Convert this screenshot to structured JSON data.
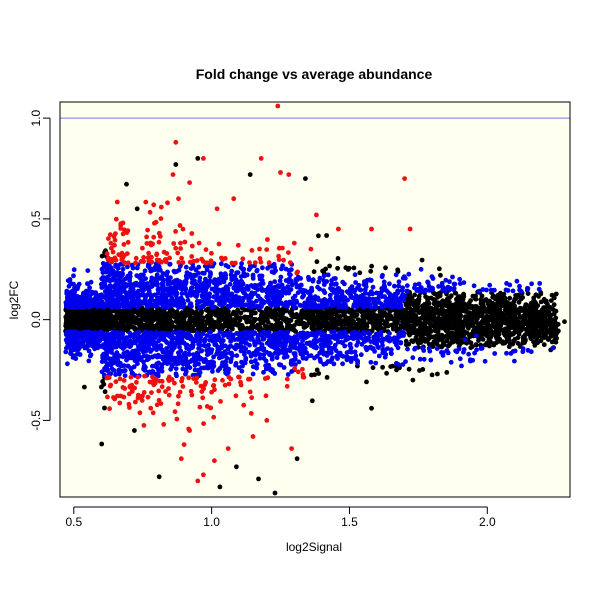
{
  "chart_data": {
    "type": "scatter",
    "title": "Fold change vs average abundance",
    "xlabel": "log2Signal",
    "ylabel": "log2FC",
    "xlim": [
      0.45,
      2.3
    ],
    "ylim": [
      -0.88,
      1.08
    ],
    "xticks": [
      0.5,
      1.0,
      1.5,
      2.0
    ],
    "xtick_labels": [
      "0.5",
      "1.0",
      "1.5",
      "2.0"
    ],
    "yticks": [
      -0.5,
      0.0,
      0.5,
      1.0
    ],
    "ytick_labels": [
      "-0.5",
      "0.0",
      "0.5",
      "1.0"
    ],
    "grid": false,
    "background": "#fffff0",
    "hline": {
      "y": 1.0,
      "color": "#7777ee"
    },
    "colors": {
      "black": "#000000",
      "blue": "#0000ee",
      "red": "#ee1111"
    },
    "highlights": {
      "red": [
        [
          1.24,
          1.06
        ],
        [
          0.87,
          0.88
        ],
        [
          1.18,
          0.8
        ],
        [
          1.7,
          0.7
        ],
        [
          1.25,
          0.73
        ],
        [
          1.28,
          0.72
        ],
        [
          1.38,
          0.52
        ],
        [
          1.46,
          0.45
        ],
        [
          1.72,
          0.45
        ],
        [
          1.58,
          0.45
        ],
        [
          0.97,
          0.8
        ],
        [
          0.86,
          0.72
        ],
        [
          0.92,
          0.68
        ],
        [
          0.88,
          0.6
        ],
        [
          1.08,
          0.6
        ],
        [
          0.79,
          0.57
        ],
        [
          0.84,
          0.58
        ],
        [
          1.02,
          0.55
        ],
        [
          1.3,
          0.38
        ],
        [
          1.36,
          0.35
        ],
        [
          0.97,
          -0.77
        ],
        [
          0.95,
          -0.8
        ],
        [
          0.89,
          -0.69
        ],
        [
          1.06,
          -0.64
        ],
        [
          1.29,
          -0.64
        ],
        [
          1.15,
          -0.58
        ],
        [
          1.01,
          -0.7
        ],
        [
          0.92,
          -0.55
        ],
        [
          1.2,
          -0.5
        ],
        [
          0.9,
          -0.62
        ]
      ],
      "black": [
        [
          1.23,
          -0.86
        ],
        [
          1.31,
          -0.69
        ],
        [
          1.58,
          -0.44
        ],
        [
          1.09,
          -0.73
        ],
        [
          0.95,
          0.8
        ],
        [
          0.87,
          0.77
        ],
        [
          1.34,
          0.7
        ],
        [
          2.23,
          -0.15
        ],
        [
          2.25,
          -0.05
        ],
        [
          2.18,
          -0.1
        ],
        [
          2.2,
          0.05
        ],
        [
          0.72,
          -0.55
        ],
        [
          1.14,
          0.72
        ],
        [
          1.17,
          -0.79
        ],
        [
          1.83,
          0.22
        ],
        [
          2.28,
          -0.01
        ],
        [
          0.81,
          -0.78
        ],
        [
          1.03,
          -0.83
        ],
        [
          0.73,
          0.55
        ],
        [
          1.73,
          -0.3
        ]
      ],
      "blue": [
        [
          1.76,
          0.25
        ],
        [
          1.9,
          0.2
        ],
        [
          2.07,
          0.18
        ],
        [
          2.19,
          0.18
        ],
        [
          1.62,
          0.22
        ],
        [
          1.56,
          0.18
        ],
        [
          1.92,
          -0.1
        ],
        [
          1.96,
          -0.08
        ],
        [
          1.8,
          0.15
        ],
        [
          1.67,
          0.1
        ]
      ]
    }
  }
}
